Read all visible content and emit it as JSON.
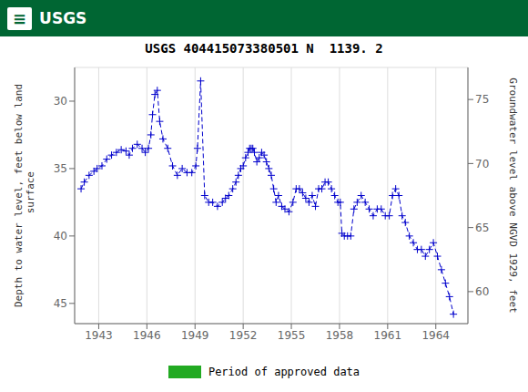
{
  "chart_data": {
    "type": "line",
    "title": "USGS 404415073380501 N  1139. 2",
    "y_label": "Depth to water level, feet below land\n surface",
    "y2_label": "Groundwater level above NGVD 1929, feet",
    "x": [
      1941.9,
      1942.1,
      1942.4,
      1942.7,
      1942.9,
      1943.2,
      1943.5,
      1943.8,
      1944.1,
      1944.4,
      1944.7,
      1944.9,
      1945.1,
      1945.4,
      1945.7,
      1945.9,
      1946.1,
      1946.25,
      1946.35,
      1946.5,
      1946.65,
      1946.8,
      1947.0,
      1947.3,
      1947.6,
      1947.9,
      1948.2,
      1948.5,
      1948.8,
      1949.05,
      1949.15,
      1949.35,
      1949.6,
      1949.85,
      1950.1,
      1950.4,
      1950.7,
      1950.9,
      1951.1,
      1951.35,
      1951.55,
      1951.7,
      1951.85,
      1952.0,
      1952.15,
      1952.3,
      1952.4,
      1952.5,
      1952.6,
      1952.7,
      1952.85,
      1953.0,
      1953.15,
      1953.3,
      1953.45,
      1953.6,
      1953.75,
      1953.9,
      1954.05,
      1954.2,
      1954.4,
      1954.6,
      1954.85,
      1955.1,
      1955.3,
      1955.5,
      1955.7,
      1955.9,
      1956.1,
      1956.3,
      1956.5,
      1956.7,
      1956.9,
      1957.1,
      1957.3,
      1957.5,
      1957.7,
      1957.9,
      1958.05,
      1958.15,
      1958.3,
      1958.5,
      1958.7,
      1958.9,
      1959.1,
      1959.35,
      1959.6,
      1959.85,
      1960.1,
      1960.35,
      1960.6,
      1960.85,
      1961.1,
      1961.3,
      1961.5,
      1961.7,
      1961.9,
      1962.1,
      1962.35,
      1962.6,
      1962.85,
      1963.1,
      1963.35,
      1963.6,
      1963.85,
      1964.1,
      1964.35,
      1964.6,
      1964.85,
      1965.1
    ],
    "values": [
      36.5,
      36.0,
      35.5,
      35.2,
      35.0,
      34.8,
      34.3,
      34.0,
      33.8,
      33.6,
      33.7,
      34.0,
      33.5,
      33.2,
      33.5,
      33.8,
      33.5,
      32.5,
      31.0,
      29.5,
      29.2,
      31.5,
      32.8,
      33.5,
      34.8,
      35.5,
      35.0,
      35.3,
      35.3,
      34.8,
      33.5,
      28.5,
      37.0,
      37.5,
      37.5,
      37.8,
      37.5,
      37.2,
      37.0,
      36.5,
      36.0,
      35.5,
      35.0,
      34.8,
      34.2,
      33.8,
      33.5,
      33.5,
      33.5,
      33.8,
      34.5,
      34.2,
      33.8,
      34.0,
      34.5,
      35.0,
      35.5,
      36.5,
      37.5,
      37.0,
      37.8,
      38.0,
      38.2,
      37.5,
      36.5,
      36.5,
      36.8,
      37.2,
      37.5,
      37.0,
      37.8,
      36.5,
      36.5,
      36.0,
      36.0,
      36.5,
      37.0,
      37.5,
      37.5,
      39.8,
      40.0,
      40.0,
      40.0,
      38.0,
      37.5,
      37.0,
      37.5,
      38.0,
      38.5,
      38.0,
      38.0,
      38.5,
      38.5,
      37.0,
      36.5,
      37.0,
      38.5,
      39.0,
      40.0,
      40.5,
      41.0,
      41.0,
      41.5,
      41.0,
      40.5,
      41.5,
      42.5,
      43.5,
      44.5,
      45.8
    ],
    "color": "#0000CC",
    "marker": "plus",
    "line_style": "dashed",
    "xlim": [
      1941.5,
      1966.0
    ],
    "xticks": [
      1943,
      1946,
      1949,
      1952,
      1955,
      1958,
      1961,
      1964
    ],
    "ylim": [
      46.5,
      27.5
    ],
    "yticks": [
      30,
      35,
      40,
      45
    ],
    "y2lim": [
      57.5,
      77.5
    ],
    "y2ticks": [
      60,
      65,
      70,
      75
    ],
    "grid": true,
    "annotations": [
      {
        "text": "≡"
      },
      {
        "text": "USGS"
      },
      {
        "text": "Period of approved data",
        "color": "#22AA22"
      }
    ]
  }
}
